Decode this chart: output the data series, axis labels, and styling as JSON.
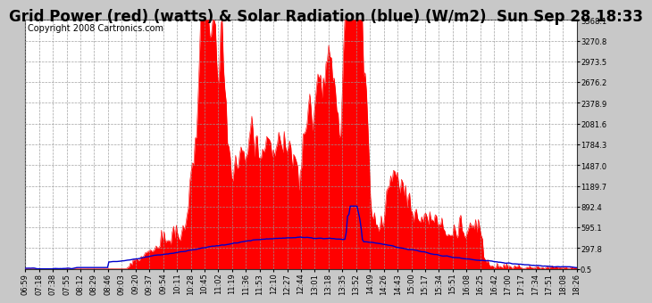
{
  "title": "Grid Power (red) (watts) & Solar Radiation (blue) (W/m2)  Sun Sep 28 18:33",
  "copyright": "Copyright 2008 Cartronics.com",
  "bg_color": "#c8c8c8",
  "plot_bg_color": "#ffffff",
  "grid_color": "#999999",
  "red_color": "#ff0000",
  "blue_color": "#0000cc",
  "ymin": 0.5,
  "ymax": 3568.1,
  "yticks": [
    0.5,
    297.8,
    595.1,
    892.4,
    1189.7,
    1487.0,
    1784.3,
    2081.6,
    2378.9,
    2676.2,
    2973.5,
    3270.8,
    3568.1
  ],
  "xtick_labels": [
    "06:59",
    "07:18",
    "07:38",
    "07:55",
    "08:12",
    "08:29",
    "08:46",
    "09:03",
    "09:20",
    "09:37",
    "09:54",
    "10:11",
    "10:28",
    "10:45",
    "11:02",
    "11:19",
    "11:36",
    "11:53",
    "12:10",
    "12:27",
    "12:44",
    "13:01",
    "13:18",
    "13:35",
    "13:52",
    "14:09",
    "14:26",
    "14:43",
    "15:00",
    "15:17",
    "15:34",
    "15:51",
    "16:08",
    "16:25",
    "16:42",
    "17:00",
    "17:17",
    "17:34",
    "17:51",
    "18:08",
    "18:26"
  ],
  "title_fontsize": 12,
  "copyright_fontsize": 7,
  "tick_fontsize": 6
}
